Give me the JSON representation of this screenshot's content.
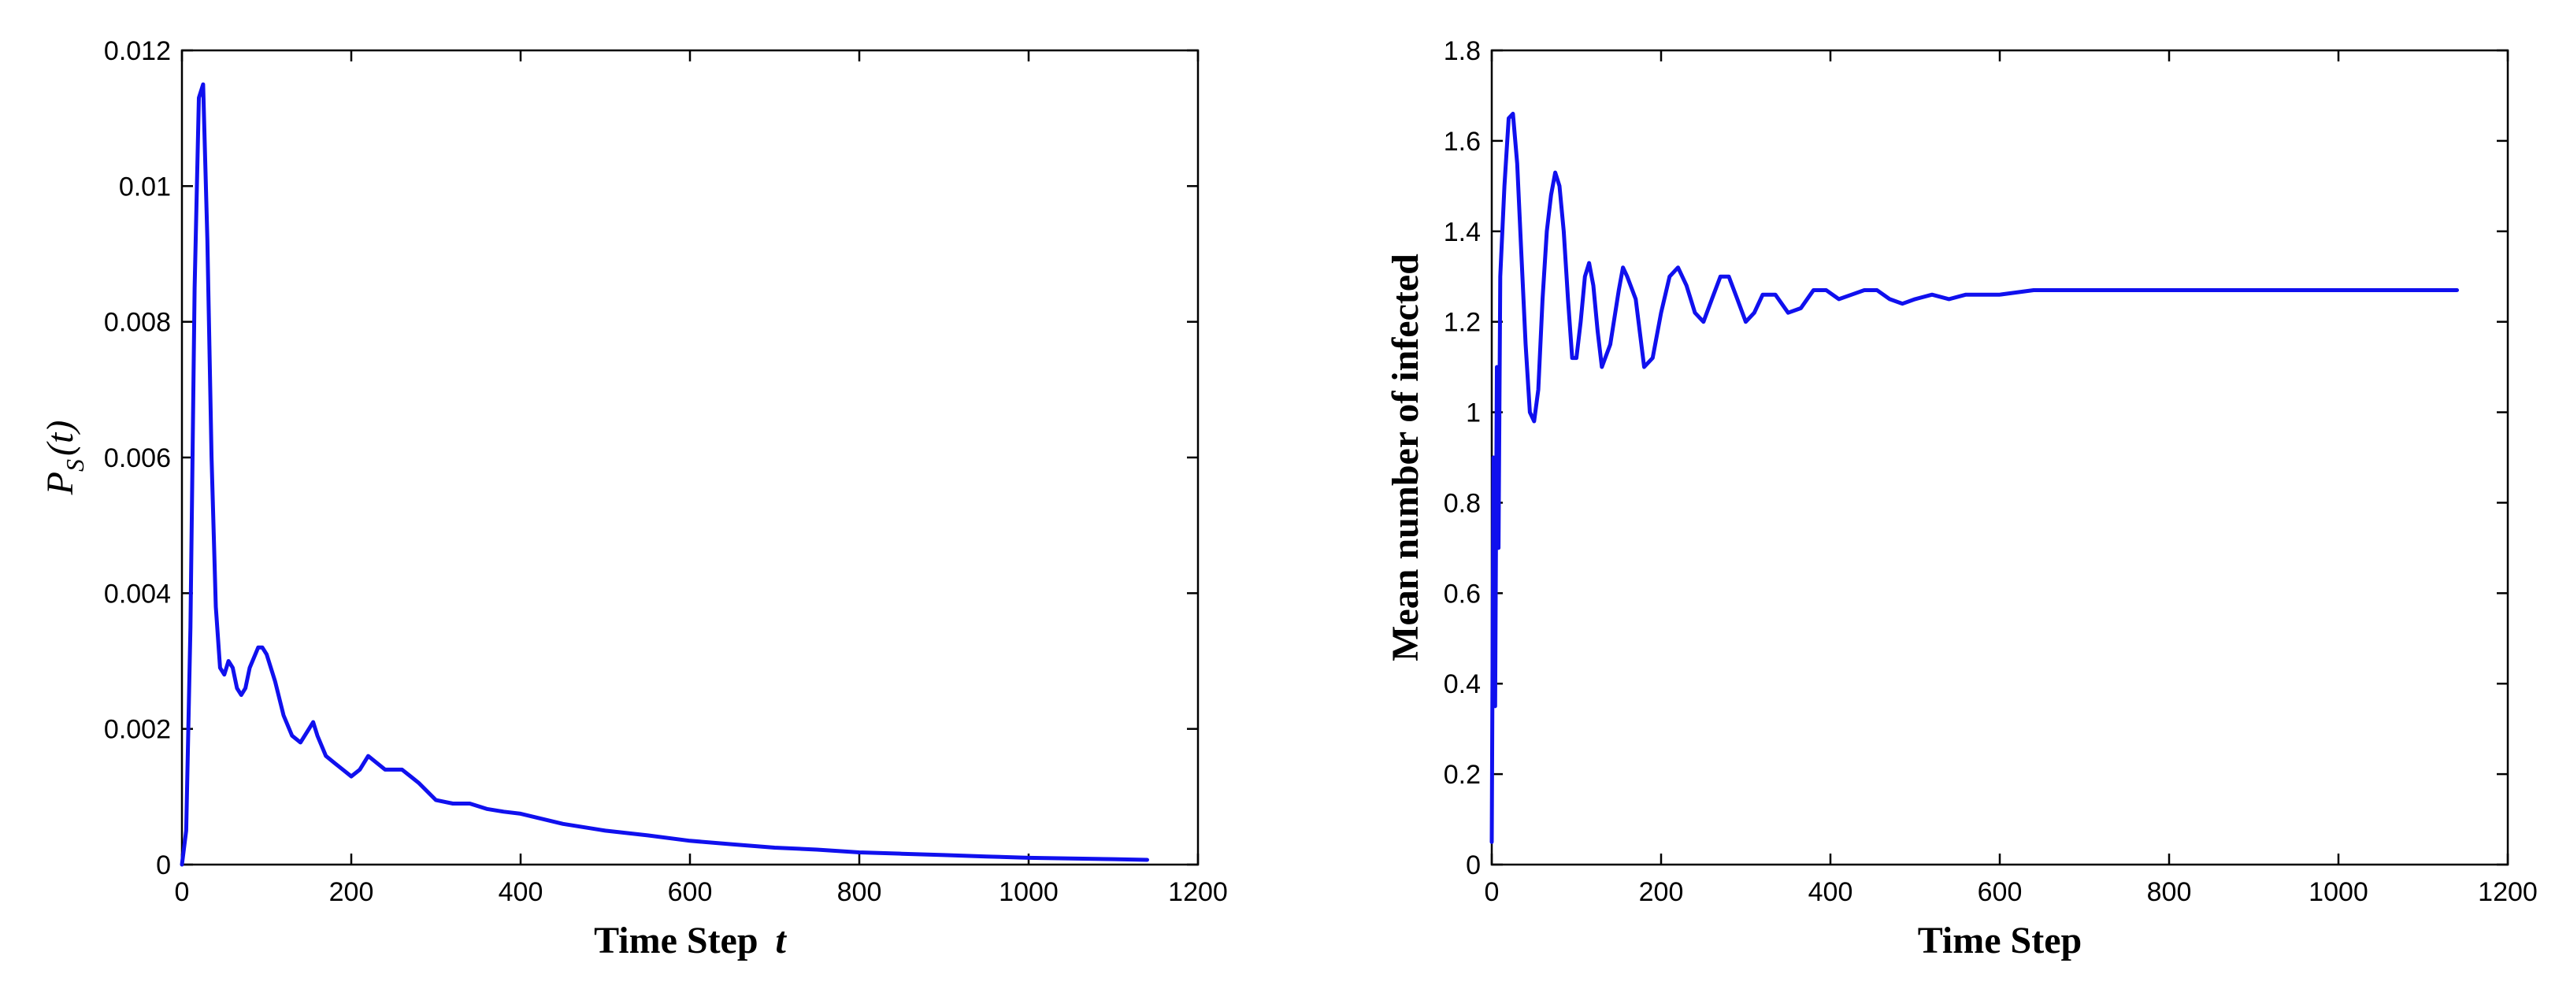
{
  "chart_data": [
    {
      "type": "line",
      "title": "",
      "xlabel": "Time Step",
      "xlabel_symbol": "t",
      "ylabel": "P",
      "ylabel_sub": "S",
      "ylabel_suffix": "(t)",
      "xlim": [
        0,
        1200
      ],
      "ylim": [
        0,
        0.012
      ],
      "xticks": [
        0,
        200,
        400,
        600,
        800,
        1000,
        1200
      ],
      "yticks": [
        0,
        0.002,
        0.004,
        0.006,
        0.008,
        0.01,
        0.012
      ],
      "xtick_labels": [
        "0",
        "200",
        "400",
        "600",
        "800",
        "1000",
        "1200"
      ],
      "ytick_labels": [
        "0",
        "0.002",
        "0.004",
        "0.006",
        "0.008",
        "0.01",
        "0.012"
      ],
      "grid": false,
      "color": "#1010ee",
      "series": [
        {
          "x": [
            0,
            5,
            10,
            15,
            20,
            25,
            30,
            35,
            40,
            45,
            50,
            55,
            60,
            65,
            70,
            75,
            80,
            90,
            95,
            100,
            110,
            120,
            130,
            140,
            150,
            155,
            160,
            170,
            180,
            190,
            200,
            210,
            220,
            230,
            240,
            250,
            260,
            270,
            280,
            300,
            320,
            340,
            360,
            380,
            400,
            450,
            500,
            550,
            600,
            650,
            700,
            750,
            800,
            850,
            900,
            950,
            1000,
            1050,
            1100,
            1140
          ],
          "y": [
            0,
            0.0005,
            0.0035,
            0.0085,
            0.0113,
            0.0115,
            0.0092,
            0.006,
            0.0038,
            0.0029,
            0.0028,
            0.003,
            0.0029,
            0.0026,
            0.0025,
            0.0026,
            0.0029,
            0.0032,
            0.0032,
            0.0031,
            0.0027,
            0.0022,
            0.0019,
            0.0018,
            0.002,
            0.0021,
            0.0019,
            0.0016,
            0.0015,
            0.0014,
            0.0013,
            0.0014,
            0.0016,
            0.0015,
            0.0014,
            0.0014,
            0.0014,
            0.0013,
            0.0012,
            0.00095,
            0.0009,
            0.0009,
            0.00082,
            0.00078,
            0.00075,
            0.0006,
            0.0005,
            0.00043,
            0.00035,
            0.0003,
            0.00025,
            0.00022,
            0.00018,
            0.00016,
            0.00014,
            0.00012,
            0.0001,
            9e-05,
            8e-05,
            7e-05
          ]
        }
      ]
    },
    {
      "type": "line",
      "title": "",
      "xlabel": "Time Step",
      "ylabel": "Mean number of infected",
      "xlim": [
        0,
        1200
      ],
      "ylim": [
        0,
        1.8
      ],
      "xticks": [
        0,
        200,
        400,
        600,
        800,
        1000,
        1200
      ],
      "yticks": [
        0,
        0.2,
        0.4,
        0.6,
        0.8,
        1,
        1.2,
        1.4,
        1.6,
        1.8
      ],
      "xtick_labels": [
        "0",
        "200",
        "400",
        "600",
        "800",
        "1000",
        "1200"
      ],
      "ytick_labels": [
        "0",
        "0.2",
        "0.4",
        "0.6",
        "0.8",
        "1",
        "1.2",
        "1.4",
        "1.6",
        "1.8"
      ],
      "grid": false,
      "color": "#1010ee",
      "series": [
        {
          "x": [
            0,
            2,
            4,
            6,
            8,
            10,
            15,
            20,
            25,
            30,
            35,
            40,
            45,
            50,
            55,
            60,
            65,
            70,
            75,
            80,
            85,
            90,
            95,
            100,
            105,
            110,
            115,
            120,
            125,
            130,
            140,
            150,
            155,
            160,
            170,
            180,
            190,
            200,
            210,
            220,
            230,
            240,
            250,
            260,
            270,
            280,
            290,
            300,
            310,
            320,
            335,
            350,
            365,
            380,
            395,
            410,
            425,
            440,
            455,
            470,
            485,
            500,
            520,
            540,
            560,
            580,
            600,
            640,
            700,
            800,
            900,
            1000,
            1100,
            1140
          ],
          "y": [
            0.05,
            0.9,
            0.35,
            1.1,
            0.7,
            1.3,
            1.5,
            1.65,
            1.66,
            1.55,
            1.35,
            1.15,
            1.0,
            0.98,
            1.05,
            1.25,
            1.4,
            1.48,
            1.53,
            1.5,
            1.4,
            1.25,
            1.12,
            1.12,
            1.2,
            1.3,
            1.33,
            1.28,
            1.18,
            1.1,
            1.15,
            1.27,
            1.32,
            1.3,
            1.25,
            1.1,
            1.12,
            1.22,
            1.3,
            1.32,
            1.28,
            1.22,
            1.2,
            1.25,
            1.3,
            1.3,
            1.25,
            1.2,
            1.22,
            1.26,
            1.26,
            1.22,
            1.23,
            1.27,
            1.27,
            1.25,
            1.26,
            1.27,
            1.27,
            1.25,
            1.24,
            1.25,
            1.26,
            1.25,
            1.26,
            1.26,
            1.26,
            1.27,
            1.27,
            1.27,
            1.27,
            1.27,
            1.27,
            1.27
          ]
        }
      ]
    }
  ]
}
